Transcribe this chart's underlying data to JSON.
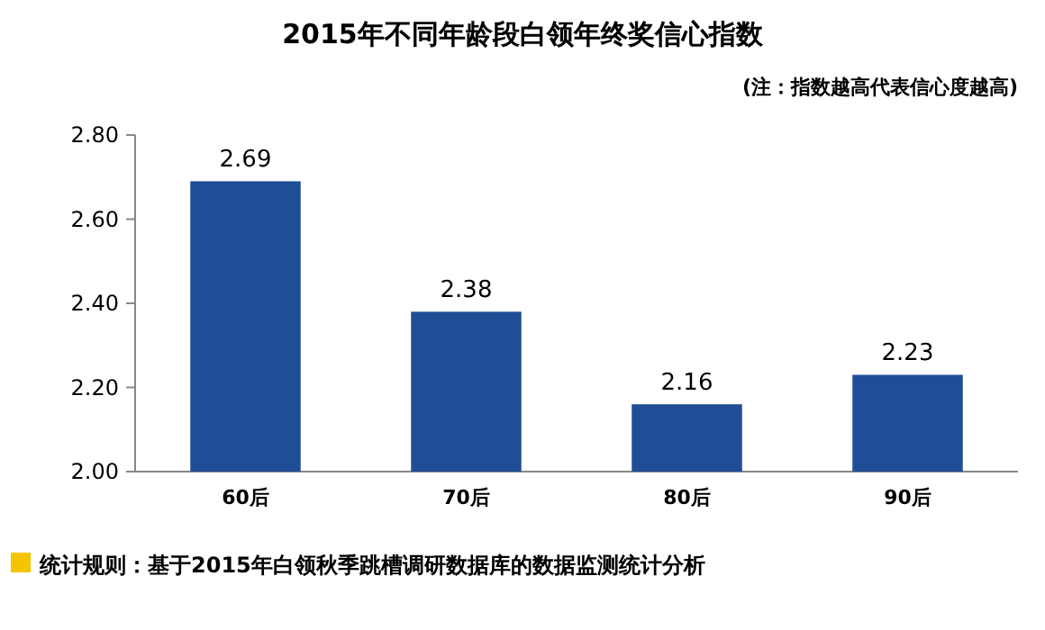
{
  "chart_data": {
    "type": "bar",
    "title": "2015年不同年龄段白领年终奖信心指数",
    "subtitle": "(注：指数越高代表信心度越高)",
    "categories": [
      "60后",
      "70后",
      "80后",
      "90后"
    ],
    "values": [
      2.69,
      2.38,
      2.16,
      2.23
    ],
    "color": "#1f4e96",
    "ylim": [
      2.0,
      2.8
    ],
    "yticks": [
      {
        "value": 2.0,
        "label": "2.00"
      },
      {
        "value": 2.2,
        "label": "2.20"
      },
      {
        "value": 2.4,
        "label": "2.40"
      },
      {
        "value": 2.6,
        "label": "2.60"
      },
      {
        "value": 2.8,
        "label": "2.80"
      }
    ],
    "grid": false,
    "data_labels": true,
    "annotations": [
      "统计规则：基于2015年白领秋季跳槽调研数据库的数据监测统计分析"
    ]
  }
}
